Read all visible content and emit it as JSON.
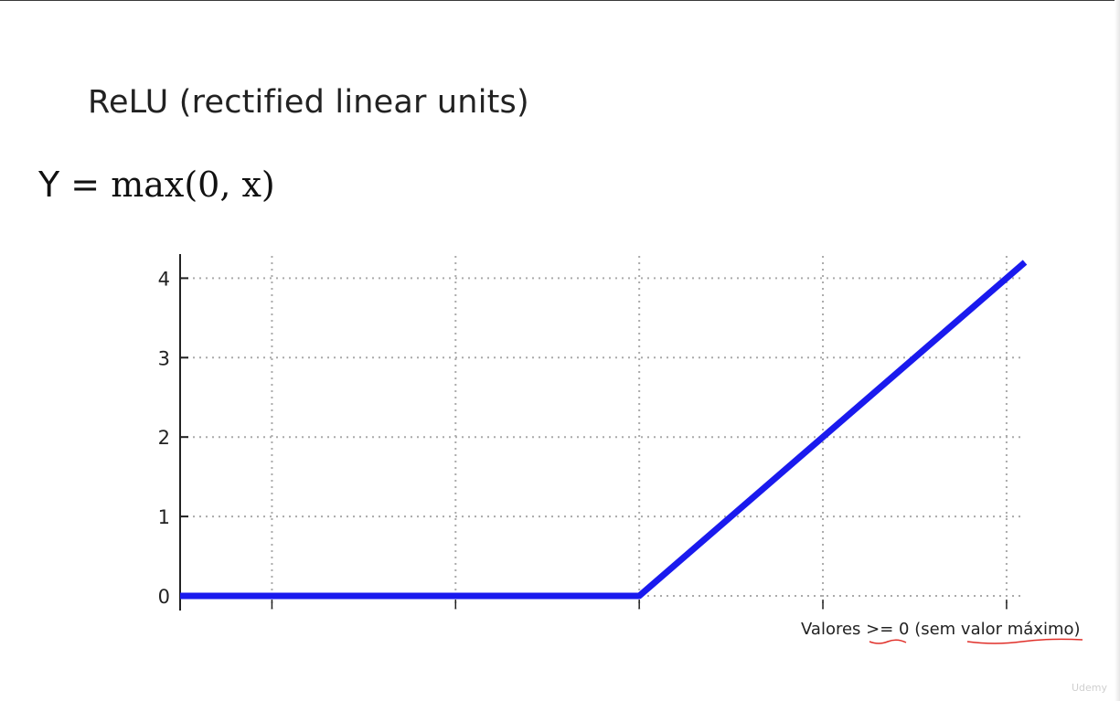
{
  "slide": {
    "title": "ReLU (rectified linear units)",
    "formula_lhs": "Y = ",
    "formula_rhs": "max(0, x)",
    "annotation": "Valores >= 0 (sem valor máximo)",
    "watermark": "Udemy"
  },
  "chart_data": {
    "type": "line",
    "title": "",
    "xlabel": "",
    "ylabel": "",
    "x": [
      -5,
      0,
      4.2
    ],
    "series": [
      {
        "values": [
          0,
          0,
          4.2
        ],
        "color": "#1a1aee"
      }
    ],
    "xlim": [
      -5,
      4.2
    ],
    "ylim": [
      0,
      4.2
    ],
    "x_gridlines": [
      -4,
      -2,
      0,
      2,
      4
    ],
    "yticks": [
      0,
      1,
      2,
      3,
      4
    ],
    "ytick_labels": [
      "0",
      "1",
      "2",
      "3",
      "4"
    ],
    "grid": true,
    "grid_style": "dotted",
    "legend": false
  },
  "colors": {
    "line": "#1a1aee",
    "grid": "#aaaaaa",
    "axis": "#222222",
    "underline": "#e0302a"
  }
}
